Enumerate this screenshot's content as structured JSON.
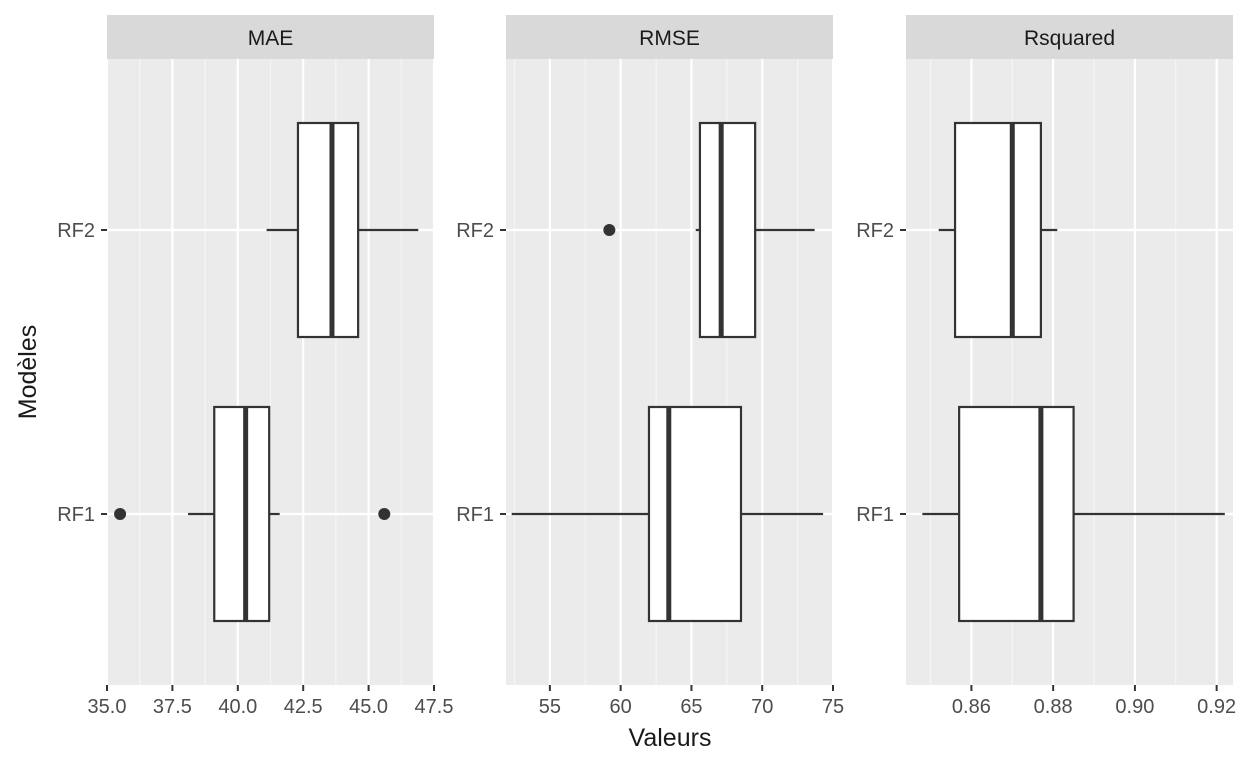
{
  "chart_data": {
    "type": "boxplot",
    "ylabel": "Modèles",
    "xlabel": "Valeurs",
    "categories": [
      "RF2",
      "RF1"
    ],
    "facets": [
      {
        "title": "MAE",
        "xlim": [
          35.0,
          47.5
        ],
        "ticks": [
          35.0,
          37.5,
          40.0,
          42.5,
          45.0,
          47.5
        ],
        "tick_labels": [
          "35.0",
          "37.5",
          "40.0",
          "42.5",
          "45.0",
          "47.5"
        ],
        "boxes": [
          {
            "model": "RF2",
            "min": 41.1,
            "q1": 42.3,
            "median": 43.6,
            "q3": 44.6,
            "max": 46.9,
            "outliers": []
          },
          {
            "model": "RF1",
            "min": 38.1,
            "q1": 39.1,
            "median": 40.3,
            "q3": 41.2,
            "max": 41.6,
            "outliers": [
              35.5,
              45.6
            ]
          }
        ]
      },
      {
        "title": "RMSE",
        "xlim": [
          51.9,
          75.0
        ],
        "ticks": [
          55,
          60,
          65,
          70,
          75
        ],
        "tick_labels": [
          "55",
          "60",
          "65",
          "70",
          "75"
        ],
        "boxes": [
          {
            "model": "RF2",
            "min": 65.3,
            "q1": 65.6,
            "median": 67.1,
            "q3": 69.5,
            "max": 73.7,
            "outliers": [
              59.2
            ]
          },
          {
            "model": "RF1",
            "min": 52.3,
            "q1": 62.0,
            "median": 63.4,
            "q3": 68.5,
            "max": 74.3,
            "outliers": []
          }
        ]
      },
      {
        "title": "Rsquared",
        "xlim": [
          0.844,
          0.924
        ],
        "ticks": [
          0.86,
          0.88,
          0.9,
          0.92
        ],
        "tick_labels": [
          "0.86",
          "0.88",
          "0.90",
          "0.92"
        ],
        "boxes": [
          {
            "model": "RF2",
            "min": 0.852,
            "q1": 0.856,
            "median": 0.87,
            "q3": 0.877,
            "max": 0.881,
            "outliers": []
          },
          {
            "model": "RF1",
            "min": 0.848,
            "q1": 0.857,
            "median": 0.877,
            "q3": 0.885,
            "max": 0.922,
            "outliers": []
          }
        ]
      }
    ],
    "colors": {
      "panel_bg": "#ebebeb",
      "strip_bg": "#d9d9d9",
      "grid_major": "#ffffff",
      "grid_minor": "#f5f5f5",
      "box_stroke": "#333333",
      "box_fill": "#ffffff",
      "axis_text": "#4d4d4d",
      "title_text": "#1a1a1a"
    }
  }
}
